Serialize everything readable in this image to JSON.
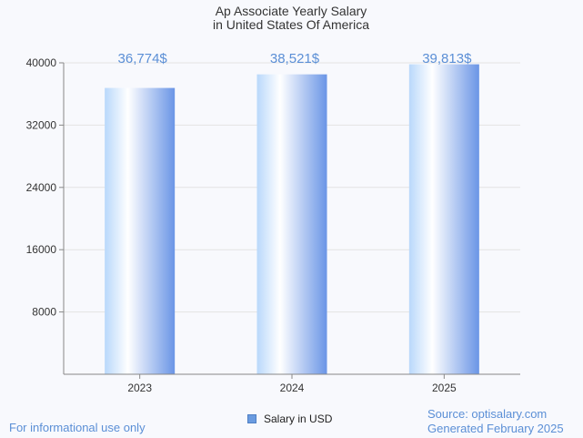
{
  "chart_data": {
    "type": "bar",
    "title": [
      "Ap Associate Yearly Salary",
      "in United States Of America"
    ],
    "categories": [
      "2023",
      "2024",
      "2025"
    ],
    "values": [
      36774,
      38521,
      39813
    ],
    "value_labels": [
      "36,774$",
      "38,521$",
      "39,813$"
    ],
    "series": [
      {
        "name": "Salary in USD",
        "values": [
          36774,
          38521,
          39813
        ]
      }
    ],
    "yticks": [
      8000,
      16000,
      24000,
      32000,
      40000
    ],
    "ylim": [
      0,
      40000
    ],
    "grid": true,
    "legend_position": "bottom-center"
  },
  "legend": {
    "label": "Salary in USD"
  },
  "footer": {
    "left": "For informational use only",
    "source": "Source: optisalary.com",
    "generated": "Generated February 2025"
  },
  "colors": {
    "bar_light": "#ffffff",
    "bar_mid": "#b9d8fb",
    "bar_dark": "#6a95e6",
    "value_label": "#5b8fd6",
    "grid": "#e3e3e3",
    "axis": "#888888"
  }
}
